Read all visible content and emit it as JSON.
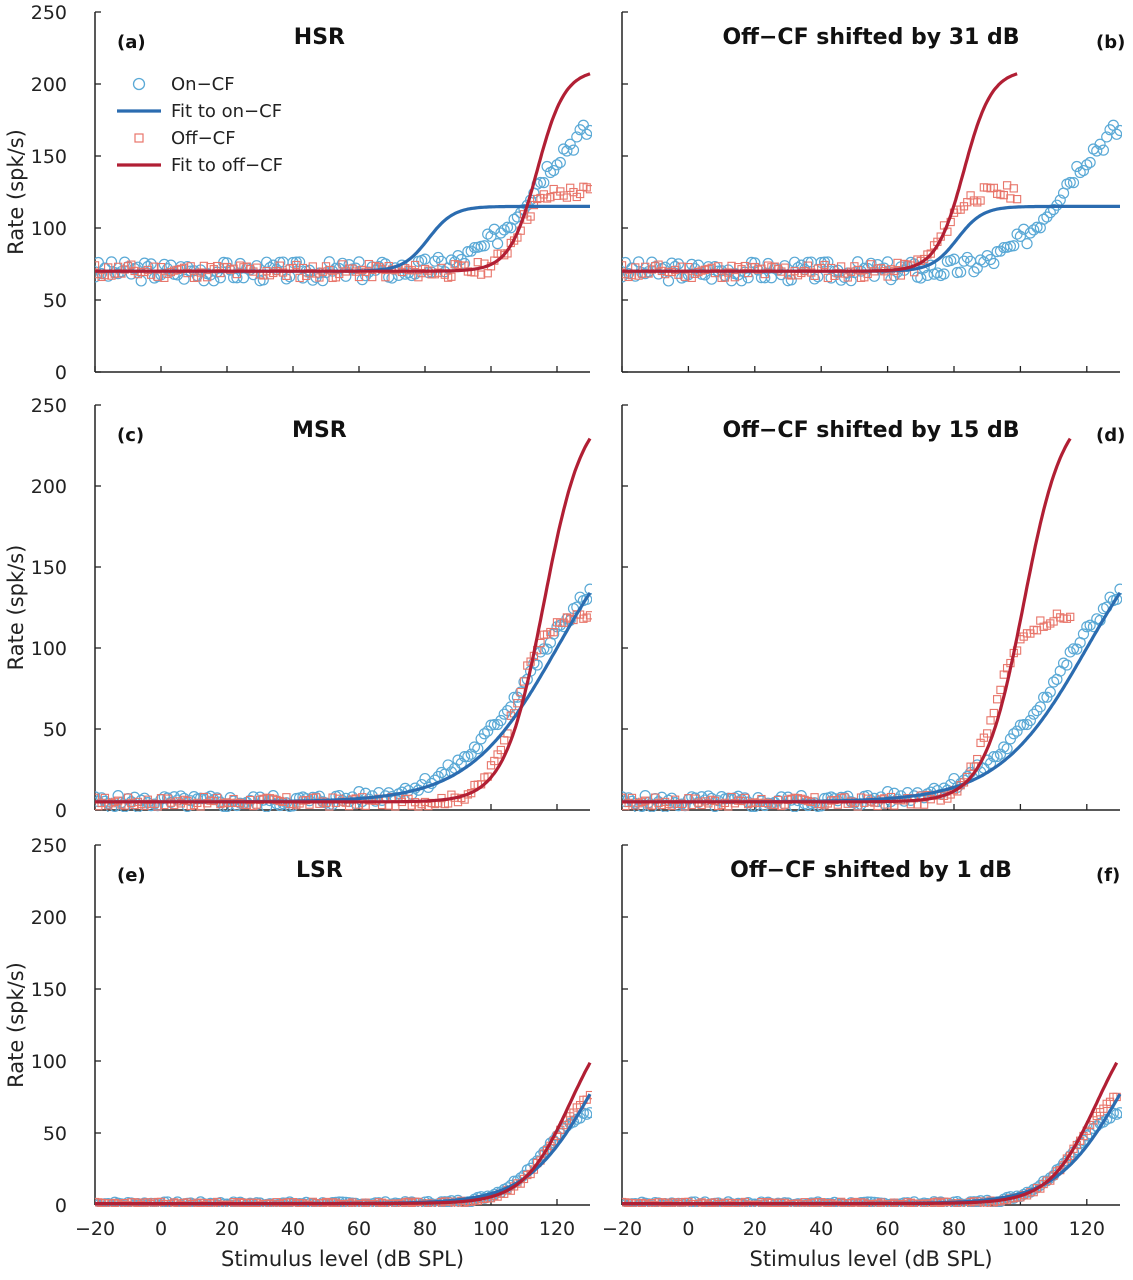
{
  "figure": {
    "x_axis_label": "Stimulus level (dB SPL)",
    "y_axis_label": "Rate (spk/s)",
    "colors": {
      "on_cf": "#2b6cb0",
      "off_cf": "#b11f34",
      "on_marker": "#5aa9d6",
      "off_marker": "#e8756a"
    },
    "legend": {
      "on_points": "On−CF",
      "on_fit": "Fit to on−CF",
      "off_points": "Off−CF",
      "off_fit": "Fit to off−CF"
    }
  },
  "chart_data": [
    {
      "type": "scatter",
      "panel_letter": "(a)",
      "title": "HSR",
      "xlim": [
        -20,
        130
      ],
      "ylim": [
        0,
        250
      ],
      "xticks": [
        -20,
        0,
        20,
        40,
        60,
        80,
        100,
        120
      ],
      "yticks": [
        0,
        50,
        100,
        150,
        200,
        250
      ],
      "show_legend": true,
      "legend_position": "top-left",
      "fits": {
        "on": {
          "base": 70,
          "amp": 45,
          "mid": 81,
          "k": 0.26,
          "xmax": 130
        },
        "off": {
          "base": 70,
          "amp": 140,
          "mid": 114,
          "k": 0.24,
          "xmax": 130
        }
      },
      "points": {
        "on": {
          "base": 70,
          "amp": 110,
          "mid": 112,
          "k": 0.12,
          "noise": 7,
          "seed": 3,
          "xmax": 130
        },
        "off": {
          "base": 70,
          "amp": 55,
          "mid": 108,
          "k": 0.3,
          "noise": 5,
          "seed": 11,
          "xmax": 130
        }
      }
    },
    {
      "type": "scatter",
      "panel_letter": "(b)",
      "title": "Off−CF shifted by 31 dB",
      "xlim": [
        -20,
        130
      ],
      "ylim": [
        0,
        250
      ],
      "xticks": [
        -20,
        0,
        20,
        40,
        60,
        80,
        100,
        120
      ],
      "yticks": [
        0,
        50,
        100,
        150,
        200,
        250
      ],
      "show_legend": false,
      "fits": {
        "on": {
          "base": 70,
          "amp": 45,
          "mid": 81,
          "k": 0.26,
          "xmax": 130
        },
        "off": {
          "base": 70,
          "amp": 140,
          "mid": 83,
          "k": 0.24,
          "xmax": 99
        }
      },
      "points": {
        "on": {
          "base": 70,
          "amp": 110,
          "mid": 112,
          "k": 0.12,
          "noise": 7,
          "seed": 3,
          "xmax": 130
        },
        "off": {
          "base": 70,
          "amp": 55,
          "mid": 77,
          "k": 0.3,
          "noise": 5,
          "seed": 11,
          "xmax": 99
        }
      }
    },
    {
      "type": "scatter",
      "panel_letter": "(c)",
      "title": "MSR",
      "xlim": [
        -20,
        130
      ],
      "ylim": [
        0,
        250
      ],
      "xticks": [
        -20,
        0,
        20,
        40,
        60,
        80,
        100,
        120
      ],
      "yticks": [
        0,
        50,
        100,
        150,
        200,
        250
      ],
      "show_legend": false,
      "fits": {
        "on": {
          "base": 5,
          "amp": 190,
          "mid": 120,
          "k": 0.075,
          "xmax": 130
        },
        "off": {
          "base": 5,
          "amp": 245,
          "mid": 116,
          "k": 0.17,
          "xmax": 130
        }
      },
      "points": {
        "on": {
          "base": 5,
          "amp": 160,
          "mid": 112,
          "k": 0.08,
          "noise": 4,
          "seed": 5,
          "xmax": 130
        },
        "off": {
          "base": 5,
          "amp": 115,
          "mid": 107,
          "k": 0.22,
          "noise": 3,
          "seed": 17,
          "xmax": 130
        }
      }
    },
    {
      "type": "scatter",
      "panel_letter": "(d)",
      "title": "Off−CF shifted by 15 dB",
      "xlim": [
        -20,
        130
      ],
      "ylim": [
        0,
        250
      ],
      "xticks": [
        -20,
        0,
        20,
        40,
        60,
        80,
        100,
        120
      ],
      "yticks": [
        0,
        50,
        100,
        150,
        200,
        250
      ],
      "show_legend": false,
      "fits": {
        "on": {
          "base": 5,
          "amp": 190,
          "mid": 120,
          "k": 0.075,
          "xmax": 130
        },
        "off": {
          "base": 5,
          "amp": 245,
          "mid": 101,
          "k": 0.17,
          "xmax": 115
        }
      },
      "points": {
        "on": {
          "base": 5,
          "amp": 160,
          "mid": 112,
          "k": 0.08,
          "noise": 4,
          "seed": 5,
          "xmax": 130
        },
        "off": {
          "base": 5,
          "amp": 115,
          "mid": 92,
          "k": 0.22,
          "noise": 3,
          "seed": 17,
          "xmax": 115
        }
      }
    },
    {
      "type": "scatter",
      "panel_letter": "(e)",
      "title": "LSR",
      "xlim": [
        -20,
        130
      ],
      "ylim": [
        0,
        250
      ],
      "xticks": [
        -20,
        0,
        20,
        40,
        60,
        80,
        100,
        120
      ],
      "yticks": [
        0,
        50,
        100,
        150,
        200,
        250
      ],
      "show_legend": false,
      "fits": {
        "on": {
          "base": 1,
          "amp": 160,
          "mid": 131,
          "k": 0.1,
          "xmax": 130
        },
        "off": {
          "base": 1,
          "amp": 140,
          "mid": 124,
          "k": 0.14,
          "xmax": 130
        }
      },
      "points": {
        "on": {
          "base": 1,
          "amp": 72,
          "mid": 116,
          "k": 0.15,
          "noise": 1.2,
          "seed": 7,
          "xmax": 130
        },
        "off": {
          "base": 1,
          "amp": 88,
          "mid": 119,
          "k": 0.16,
          "noise": 1.2,
          "seed": 23,
          "xmax": 130
        }
      }
    },
    {
      "type": "scatter",
      "panel_letter": "(f)",
      "title": "Off−CF shifted by 1 dB",
      "xlim": [
        -20,
        130
      ],
      "ylim": [
        0,
        250
      ],
      "xticks": [
        -20,
        0,
        20,
        40,
        60,
        80,
        100,
        120
      ],
      "yticks": [
        0,
        50,
        100,
        150,
        200,
        250
      ],
      "show_legend": false,
      "fits": {
        "on": {
          "base": 1,
          "amp": 160,
          "mid": 131,
          "k": 0.1,
          "xmax": 130
        },
        "off": {
          "base": 1,
          "amp": 140,
          "mid": 123,
          "k": 0.14,
          "xmax": 129
        }
      },
      "points": {
        "on": {
          "base": 1,
          "amp": 72,
          "mid": 116,
          "k": 0.15,
          "noise": 1.2,
          "seed": 7,
          "xmax": 130
        },
        "off": {
          "base": 1,
          "amp": 88,
          "mid": 118,
          "k": 0.16,
          "noise": 1.2,
          "seed": 23,
          "xmax": 129
        }
      }
    }
  ]
}
